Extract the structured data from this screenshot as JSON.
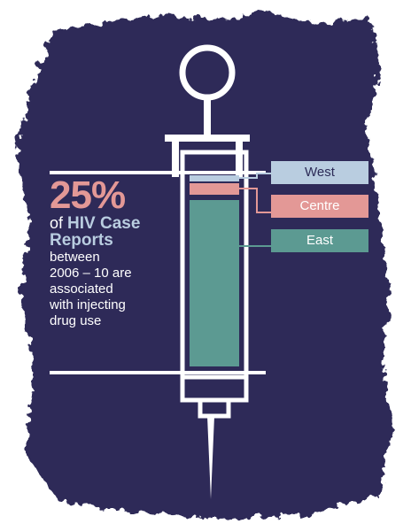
{
  "colors": {
    "background": "#2d2c58",
    "outline": "#ffffff",
    "west": "#b9cde0",
    "centre": "#e39896",
    "east": "#5c9a92",
    "accent_text": "#e39896",
    "highlight_text": "#b9cde0"
  },
  "headline": {
    "percent": "25%",
    "of": "of",
    "subject_1": "HIV Case",
    "subject_2": "Reports",
    "description": [
      "between",
      "2006 – 10 are",
      "associated",
      "with injecting",
      "drug use"
    ]
  },
  "legend": [
    {
      "label": "West",
      "color": "#b9cde0",
      "text_color": "#2d2c58"
    },
    {
      "label": "Centre",
      "color": "#e39896",
      "text_color": "#ffffff"
    },
    {
      "label": "East",
      "color": "#5c9a92",
      "text_color": "#ffffff"
    }
  ],
  "icon": "syringe-icon"
}
